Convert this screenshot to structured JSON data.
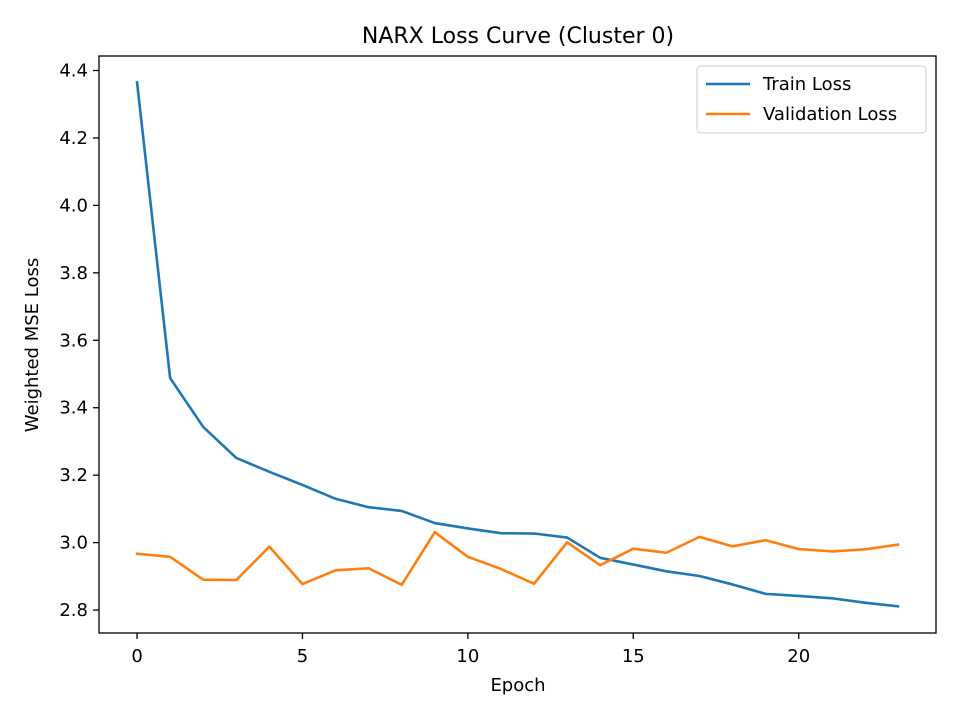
{
  "chart_data": {
    "type": "line",
    "title": "NARX Loss Curve (Cluster 0)",
    "xlabel": "Epoch",
    "ylabel": "Weighted MSE Loss",
    "xlim": [
      -1.15,
      24.15
    ],
    "ylim": [
      2.732,
      4.443
    ],
    "xticks": [
      0,
      5,
      10,
      15,
      20
    ],
    "yticks": [
      2.8,
      3.0,
      3.2,
      3.4,
      3.6,
      3.8,
      4.0,
      4.2,
      4.4
    ],
    "xtick_labels": [
      "0",
      "5",
      "10",
      "15",
      "20"
    ],
    "ytick_labels": [
      "2.8",
      "3.0",
      "3.2",
      "3.4",
      "3.6",
      "3.8",
      "4.0",
      "4.2",
      "4.4"
    ],
    "grid": false,
    "legend_position": "top-right",
    "x": [
      0,
      1,
      2,
      3,
      4,
      5,
      6,
      7,
      8,
      9,
      10,
      11,
      12,
      13,
      14,
      15,
      16,
      17,
      18,
      19,
      20,
      21,
      22,
      23
    ],
    "series": [
      {
        "name": "Train Loss",
        "color": "#1f77b4",
        "values": [
          4.365,
          3.488,
          3.343,
          3.251,
          3.21,
          3.171,
          3.13,
          3.105,
          3.094,
          3.058,
          3.042,
          3.028,
          3.027,
          3.015,
          2.955,
          2.935,
          2.915,
          2.901,
          2.876,
          2.848,
          2.842,
          2.835,
          2.822,
          2.811
        ]
      },
      {
        "name": "Validation Loss",
        "color": "#ff7f0e",
        "values": [
          2.967,
          2.958,
          2.89,
          2.889,
          2.988,
          2.877,
          2.918,
          2.924,
          2.875,
          3.031,
          2.958,
          2.922,
          2.878,
          3.001,
          2.933,
          2.982,
          2.97,
          3.017,
          2.989,
          3.007,
          2.981,
          2.974,
          2.98,
          2.994
        ]
      }
    ]
  }
}
